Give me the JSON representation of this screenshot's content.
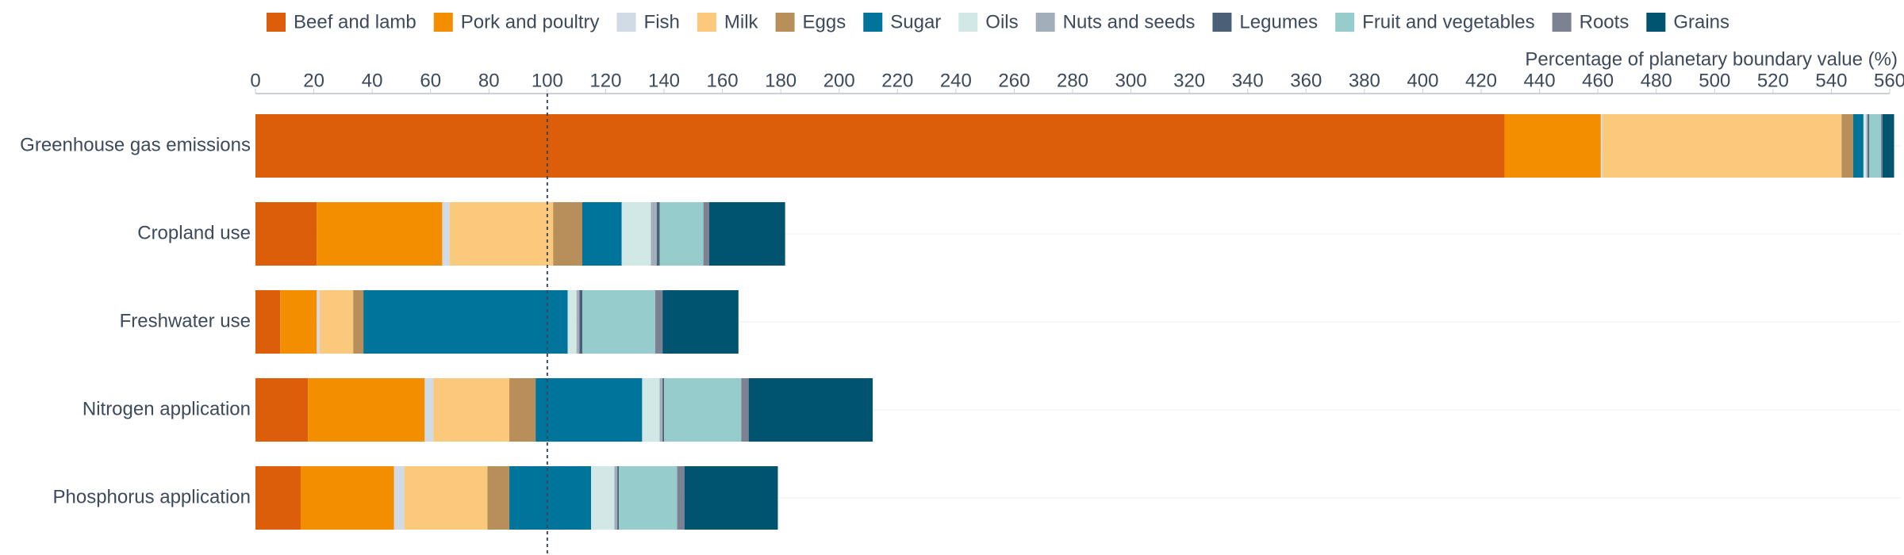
{
  "chart_data": {
    "type": "stacked-barh",
    "x_label": "Percentage of planetary boundary value (%)",
    "categories": [
      "Greenhouse gas emissions",
      "Cropland use",
      "Freshwater use",
      "Nitrogen application",
      "Phosphorus application"
    ],
    "series": [
      {
        "name": "Beef and lamb",
        "color": "#dd5e0a",
        "values": [
          428,
          21,
          8.5,
          18,
          15.5
        ]
      },
      {
        "name": "Pork and poultry",
        "color": "#f28e00",
        "values": [
          33,
          43,
          12.5,
          40,
          32
        ]
      },
      {
        "name": "Fish",
        "color": "#d0dbe6",
        "values": [
          0.5,
          2.5,
          1,
          3,
          3.5
        ]
      },
      {
        "name": "Milk",
        "color": "#fbc97c",
        "values": [
          82,
          35.5,
          11.5,
          26,
          28.5
        ]
      },
      {
        "name": "Eggs",
        "color": "#b88f5b",
        "values": [
          4,
          10,
          3.5,
          9,
          7.5
        ]
      },
      {
        "name": "Sugar",
        "color": "#00749a",
        "values": [
          3.5,
          13.5,
          70,
          36.5,
          28
        ]
      },
      {
        "name": "Oils",
        "color": "#d2e8e6",
        "values": [
          1,
          10,
          3,
          6,
          8
        ]
      },
      {
        "name": "Nuts and seeds",
        "color": "#a3aebb",
        "values": [
          0.5,
          2,
          1,
          1,
          1
        ]
      },
      {
        "name": "Legumes",
        "color": "#4b6076",
        "values": [
          0.5,
          1,
          1,
          0.5,
          0.5
        ]
      },
      {
        "name": "Fruit and vegetables",
        "color": "#96cccb",
        "values": [
          4,
          15,
          25,
          26.5,
          20
        ]
      },
      {
        "name": "Roots",
        "color": "#7c8291",
        "values": [
          0.5,
          2,
          2.5,
          2.5,
          2.5
        ]
      },
      {
        "name": "Grains",
        "color": "#005470",
        "values": [
          4,
          26,
          26,
          42.5,
          32
        ]
      }
    ],
    "xlim": [
      0,
      560
    ],
    "xticks": [
      0,
      20,
      40,
      60,
      80,
      100,
      120,
      140,
      160,
      180,
      200,
      220,
      240,
      260,
      280,
      300,
      320,
      340,
      360,
      380,
      400,
      420,
      440,
      460,
      480,
      500,
      520,
      540,
      560
    ],
    "reference_line": 100
  }
}
